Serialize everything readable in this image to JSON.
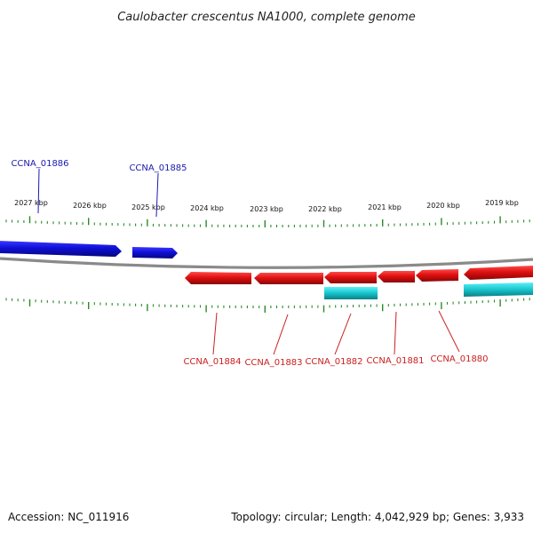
{
  "title": "Caulobacter crescentus NA1000, complete genome",
  "footer": {
    "accession": "Accession: NC_011916",
    "summary": "Topology: circular; Length: 4,042,929 bp; Genes: 3,933"
  },
  "colors": {
    "forward_gene": "#1010d0",
    "reverse_gene": "#e01010",
    "reverse_cds": "#10c0c8",
    "backbone": "#888888",
    "ticks": "#2a8a2a",
    "forward_label": "#1a1ab0",
    "reverse_label": "#cc2020"
  },
  "ruler": {
    "unit": "kbp",
    "labels": [
      "2027 kbp",
      "2026 kbp",
      "2025 kbp",
      "2024 kbp",
      "2023 kbp",
      "2022 kbp",
      "2021 kbp",
      "2020 kbp",
      "2019 kbp"
    ]
  },
  "genes": {
    "forward": [
      "CCNA_01886",
      "CCNA_01885"
    ],
    "reverse": [
      "CCNA_01884",
      "CCNA_01883",
      "CCNA_01882",
      "CCNA_01881",
      "CCNA_01880"
    ]
  }
}
